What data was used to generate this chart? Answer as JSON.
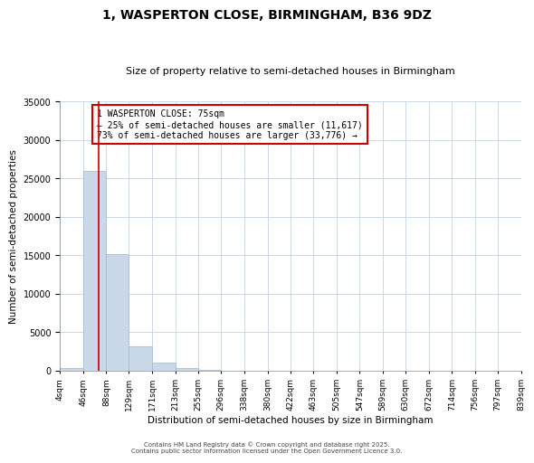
{
  "title": "1, WASPERTON CLOSE, BIRMINGHAM, B36 9DZ",
  "subtitle": "Size of property relative to semi-detached houses in Birmingham",
  "xlabel": "Distribution of semi-detached houses by size in Birmingham",
  "ylabel": "Number of semi-detached properties",
  "property_size": 75,
  "annotation_title": "1 WASPERTON CLOSE: 75sqm",
  "annotation_line1": "← 25% of semi-detached houses are smaller (11,617)",
  "annotation_line2": "73% of semi-detached houses are larger (33,776) →",
  "footer_line1": "Contains HM Land Registry data © Crown copyright and database right 2025.",
  "footer_line2": "Contains public sector information licensed under the Open Government Licence 3.0.",
  "bar_color": "#c9d9ea",
  "bar_edge_color": "#a0b8d0",
  "line_color": "#cc0000",
  "annotation_box_color": "#cc0000",
  "background_color": "#ffffff",
  "grid_color": "#c8d8e8",
  "bin_edges": [
    4,
    46,
    88,
    129,
    171,
    213,
    255,
    296,
    338,
    380,
    422,
    463,
    505,
    547,
    589,
    630,
    672,
    714,
    756,
    797,
    839
  ],
  "bin_counts": [
    300,
    26000,
    15200,
    3200,
    1100,
    400,
    150,
    0,
    0,
    0,
    0,
    0,
    0,
    0,
    0,
    0,
    0,
    0,
    0,
    0
  ],
  "ylim": [
    0,
    35000
  ],
  "yticks": [
    0,
    5000,
    10000,
    15000,
    20000,
    25000,
    30000,
    35000
  ]
}
